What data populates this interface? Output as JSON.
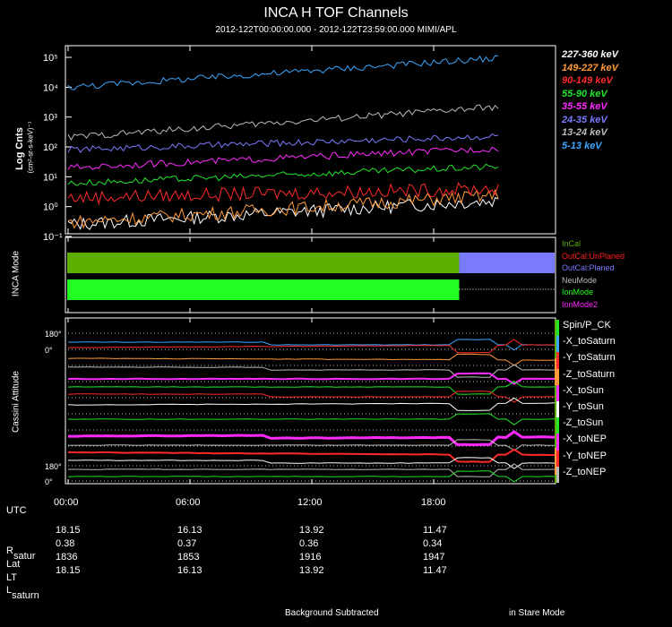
{
  "title": "INCA H TOF Channels",
  "subtitle": "2012-122T00:00:00.000 - 2012-122T23:59:00.000 MIMI/APL",
  "chart_data": [
    {
      "type": "line",
      "panel": "top",
      "ylabel": "Log Cnts",
      "yunits": "(cm²-sr-s-keV)⁻¹",
      "yscale": "log",
      "ylim": [
        0.1,
        200000
      ],
      "yticks": [
        {
          "label": "10⁻¹"
        },
        {
          "label": "10⁰"
        },
        {
          "label": "10¹"
        },
        {
          "label": "10²"
        },
        {
          "label": "10³"
        },
        {
          "label": "10⁴"
        },
        {
          "label": "10⁵"
        }
      ],
      "xlim": [
        0,
        24
      ],
      "series": [
        {
          "name": "227-360 keV",
          "color": "#ffffff",
          "start": 0.25,
          "end": 1.6
        },
        {
          "name": "149-227 keV",
          "color": "#ff9a3a",
          "start": 0.3,
          "end": 2.4
        },
        {
          "name": "90-149 keV",
          "color": "#ff2a2a",
          "start": 2.0,
          "end": 4.0
        },
        {
          "name": "55-90 keV",
          "color": "#22e62a",
          "start": 6.0,
          "end": 22.0
        },
        {
          "name": "35-55 keV",
          "color": "#ff2aff",
          "start": 20.0,
          "end": 90.0
        },
        {
          "name": "24-35 keV",
          "color": "#7a7aff",
          "start": 80.0,
          "end": 230.0
        },
        {
          "name": "13-24 keV",
          "color": "#bbbbbb",
          "start": 210.0,
          "end": 2200.0
        },
        {
          "name": "5-13 keV",
          "color": "#3aa6ff",
          "start": 10000.0,
          "end": 95000.0
        }
      ]
    },
    {
      "type": "bar",
      "panel": "middle",
      "ylabel": "INCA Mode",
      "legend": [
        {
          "name": "InCal",
          "color": "#5cb000"
        },
        {
          "name": "OutCal:UnPlaned",
          "color": "#ff2020"
        },
        {
          "name": "OutCal:Planed",
          "color": "#7a7aff"
        },
        {
          "name": "NeuMode",
          "color": "#bbbbbb"
        },
        {
          "name": "IonMode",
          "color": "#22ff22"
        },
        {
          "name": "IonMode2",
          "color": "#ff22ff"
        }
      ],
      "bands": [
        {
          "row": 1,
          "start": 0,
          "end": 19.3,
          "color": "#5cb000"
        },
        {
          "row": 1,
          "start": 19.3,
          "end": 24,
          "color": "#7a7aff"
        },
        {
          "row": 2,
          "start": 0,
          "end": 19.3,
          "color": "#22ff22"
        }
      ]
    },
    {
      "type": "line",
      "panel": "bottom",
      "ylabel": "Cassini Attitude",
      "yticks": [
        {
          "label": "180°"
        },
        {
          "label": "0°"
        },
        {
          "label": "180°"
        },
        {
          "label": "0°"
        }
      ],
      "legend": [
        {
          "name": "Spin/P_CK",
          "color": "#22e62a"
        },
        {
          "name": "-X_toSaturn",
          "color": "#3aa6ff"
        },
        {
          "name": "-Y_toSaturn",
          "color": "#ff2a2a"
        },
        {
          "name": "-Z_toSaturn",
          "color": "#ff9a3a"
        },
        {
          "name": "-X_toSun",
          "color": "#ff2aff"
        },
        {
          "name": "-Y_toSun",
          "color": "#ffffff"
        },
        {
          "name": "-Z_toSun",
          "color": "#22e62a"
        },
        {
          "name": "-X_toNEP",
          "color": "#ff2aff"
        },
        {
          "name": "-Y_toNEP",
          "color": "#ff2a2a"
        },
        {
          "name": "-Z_toNEP",
          "color": "#bbbbbb"
        }
      ]
    }
  ],
  "x_axis": {
    "ticks": [
      "00:00",
      "06:00",
      "12:00",
      "18:00"
    ],
    "rows": [
      {
        "label": "UTC",
        "values": [
          "",
          "",
          "",
          ""
        ]
      },
      {
        "label": "",
        "values": [
          "18.15",
          "16.13",
          "13.92",
          "11.47"
        ]
      },
      {
        "label": "R",
        "sub": "satur",
        "values": [
          "0.38",
          "0.37",
          "0.36",
          "0.34"
        ]
      },
      {
        "label": "Lat",
        "values": [
          "1836",
          "1853",
          "1916",
          "1947"
        ]
      },
      {
        "label": "LT",
        "values": [
          "18.15",
          "16.13",
          "13.92",
          "11.47"
        ]
      },
      {
        "label": "L",
        "sub": "saturn",
        "values": [
          "",
          "",
          "",
          ""
        ]
      }
    ]
  },
  "footer": {
    "left": "Background Subtracted",
    "right": "in Stare Mode"
  }
}
